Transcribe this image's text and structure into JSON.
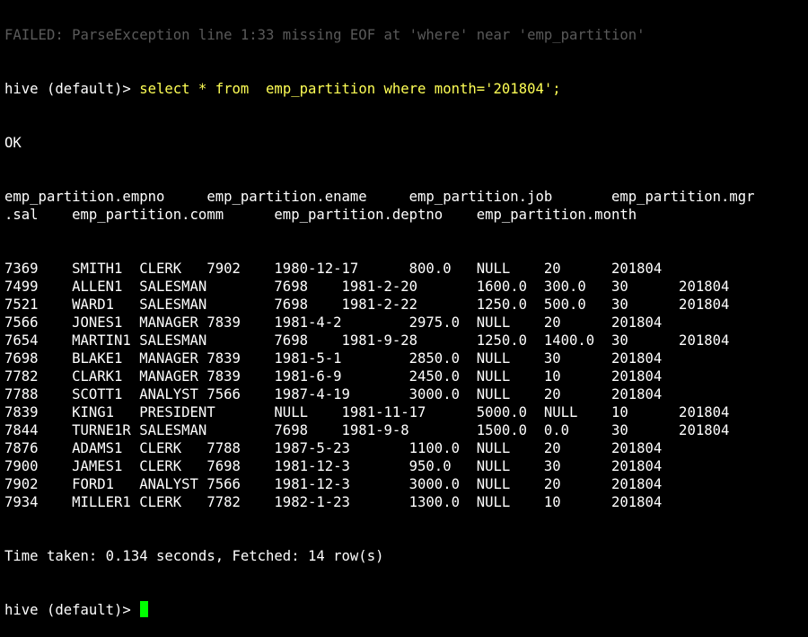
{
  "terminal": {
    "prompt": "hive (default)> ",
    "scrolled_fragment": "FAILED: ParseException line 1:33 missing EOF at 'where' near 'emp_partition'",
    "query": "select * from  emp_partition where month='201804';",
    "ok": "OK",
    "header": [
      "emp_partition.empno     emp_partition.ename     emp_partition.job       emp_partition.mgr",
      ".sal    emp_partition.comm      emp_partition.deptno    emp_partition.month"
    ],
    "rows": [
      "7369    SMITH1  CLERK   7902    1980-12-17      800.0   NULL    20      201804",
      "7499    ALLEN1  SALESMAN        7698    1981-2-20       1600.0  300.0   30      201804",
      "7521    WARD1   SALESMAN        7698    1981-2-22       1250.0  500.0   30      201804",
      "7566    JONES1  MANAGER 7839    1981-4-2        2975.0  NULL    20      201804",
      "7654    MARTIN1 SALESMAN        7698    1981-9-28       1250.0  1400.0  30      201804",
      "7698    BLAKE1  MANAGER 7839    1981-5-1        2850.0  NULL    30      201804",
      "7782    CLARK1  MANAGER 7839    1981-6-9        2450.0  NULL    10      201804",
      "7788    SCOTT1  ANALYST 7566    1987-4-19       3000.0  NULL    20      201804",
      "7839    KING1   PRESIDENT       NULL    1981-11-17      5000.0  NULL    10      201804",
      "7844    TURNE1R SALESMAN        7698    1981-9-8        1500.0  0.0     30      201804",
      "7876    ADAMS1  CLERK   7788    1987-5-23       1100.0  NULL    20      201804",
      "7900    JAMES1  CLERK   7698    1981-12-3       950.0   NULL    30      201804",
      "7902    FORD1   ANALYST 7566    1981-12-3       3000.0  NULL    20      201804",
      "7934    MILLER1 CLERK   7782    1982-1-23       1300.0  NULL    10      201804"
    ],
    "footer": "Time taken: 0.134 seconds, Fetched: 14 row(s)",
    "colors": {
      "background": "#000000",
      "text": "#ffffff",
      "command": "#ffff55",
      "cursor": "#00ff00"
    }
  }
}
